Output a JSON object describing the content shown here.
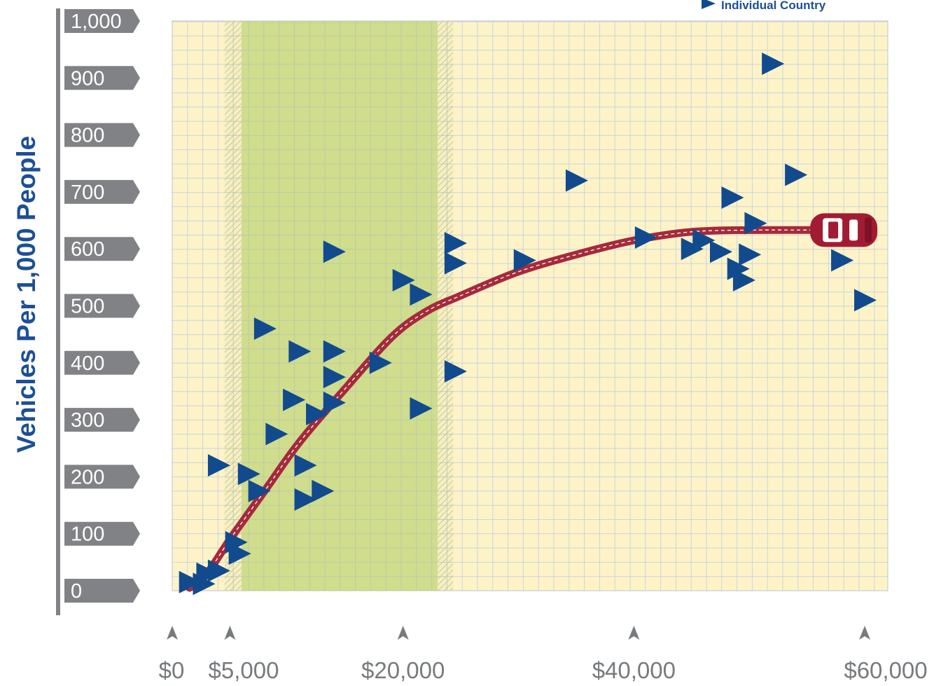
{
  "chart_data": {
    "type": "scatter",
    "ylabel": "Vehicles Per 1,000 People",
    "xlabel": "",
    "xlim": [
      0,
      62000
    ],
    "ylim": [
      0,
      1000
    ],
    "x_ticks": [
      "$0",
      "$5,000",
      "$20,000",
      "$40,000",
      "$60,000"
    ],
    "x_tick_values": [
      0,
      5000,
      20000,
      40000,
      60000
    ],
    "y_ticks": [
      "0",
      "100",
      "200",
      "300",
      "400",
      "500",
      "600",
      "700",
      "800",
      "900",
      "1,000"
    ],
    "y_tick_values": [
      0,
      100,
      200,
      300,
      400,
      500,
      600,
      700,
      800,
      900,
      1000
    ],
    "legend": {
      "label": "Individual Country",
      "position": "top-right"
    },
    "shaded_band": {
      "x_start": 6000,
      "x_end": 23000,
      "color": "#cfdd8c"
    },
    "grid": true,
    "colors": {
      "background": "#fdf3c7",
      "grid": "#c8d4de",
      "marker": "#124a8e",
      "curve": "#a52a3c",
      "axis_label": "#777b7e"
    },
    "series": [
      {
        "name": "Individual Country",
        "points": [
          [
            1500,
            15
          ],
          [
            2700,
            12
          ],
          [
            3000,
            30
          ],
          [
            4000,
            35
          ],
          [
            5800,
            65
          ],
          [
            5500,
            85
          ],
          [
            4000,
            220
          ],
          [
            6600,
            205
          ],
          [
            7500,
            175
          ],
          [
            9000,
            275
          ],
          [
            11500,
            160
          ],
          [
            11500,
            220
          ],
          [
            13000,
            175
          ],
          [
            12500,
            310
          ],
          [
            14000,
            330
          ],
          [
            14000,
            375
          ],
          [
            10500,
            335
          ],
          [
            8000,
            460
          ],
          [
            11000,
            420
          ],
          [
            14000,
            420
          ],
          [
            18000,
            400
          ],
          [
            21500,
            320
          ],
          [
            14000,
            595
          ],
          [
            20000,
            545
          ],
          [
            21500,
            520
          ],
          [
            24500,
            610
          ],
          [
            24500,
            575
          ],
          [
            24500,
            385
          ],
          [
            30500,
            580
          ],
          [
            35000,
            720
          ],
          [
            41000,
            620
          ],
          [
            45000,
            600
          ],
          [
            46000,
            615
          ],
          [
            47500,
            595
          ],
          [
            48500,
            690
          ],
          [
            49000,
            565
          ],
          [
            49500,
            545
          ],
          [
            50000,
            590
          ],
          [
            50500,
            645
          ],
          [
            52000,
            925
          ],
          [
            54000,
            730
          ],
          [
            58000,
            580
          ],
          [
            60000,
            510
          ]
        ]
      },
      {
        "name": "",
        "type": "line",
        "points": [
          [
            1500,
            5
          ],
          [
            3000,
            30
          ],
          [
            5000,
            90
          ],
          [
            8000,
            175
          ],
          [
            11000,
            260
          ],
          [
            15000,
            355
          ],
          [
            19000,
            445
          ],
          [
            22000,
            490
          ],
          [
            25000,
            518
          ],
          [
            30000,
            560
          ],
          [
            35000,
            590
          ],
          [
            40000,
            615
          ],
          [
            45000,
            630
          ],
          [
            50000,
            633
          ],
          [
            56000,
            633
          ]
        ]
      }
    ]
  }
}
